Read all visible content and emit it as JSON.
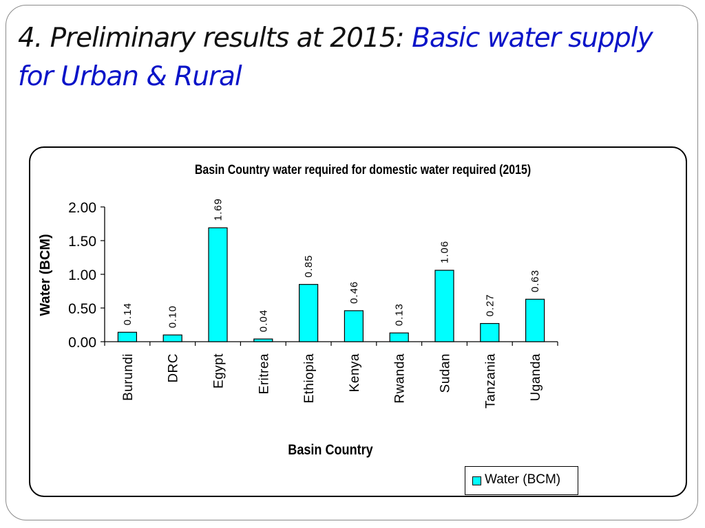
{
  "slide": {
    "title_part1": "4. Preliminary results at 2015: ",
    "title_part2": "Basic water supply for Urban & Rural"
  },
  "colors": {
    "bar": "#00ffff",
    "title_accent": "#0a14c8"
  },
  "chart_data": {
    "type": "bar",
    "title": "Basin Country water required for domestic water required (2015)",
    "xlabel": "Basin Country",
    "ylabel": "Water (BCM)",
    "categories": [
      "Burundi",
      "DRC",
      "Egypt",
      "Eritrea",
      "Ethiopia",
      "Kenya",
      "Rwanda",
      "Sudan",
      "Tanzania",
      "Uganda"
    ],
    "series": [
      {
        "name": "Water (BCM)",
        "values": [
          0.14,
          0.1,
          1.69,
          0.04,
          0.85,
          0.46,
          0.13,
          1.06,
          0.27,
          0.63
        ],
        "labels": [
          "0.14",
          "0.10",
          "1.69",
          "0.04",
          "0.85",
          "0.46",
          "0.13",
          "1.06",
          "0.27",
          "0.63"
        ]
      }
    ],
    "ylim": [
      0,
      2
    ],
    "yticks": [
      "0.00",
      "0.50",
      "1.00",
      "1.50",
      "2.00"
    ],
    "legend_position": "bottom-right",
    "grid": false
  }
}
